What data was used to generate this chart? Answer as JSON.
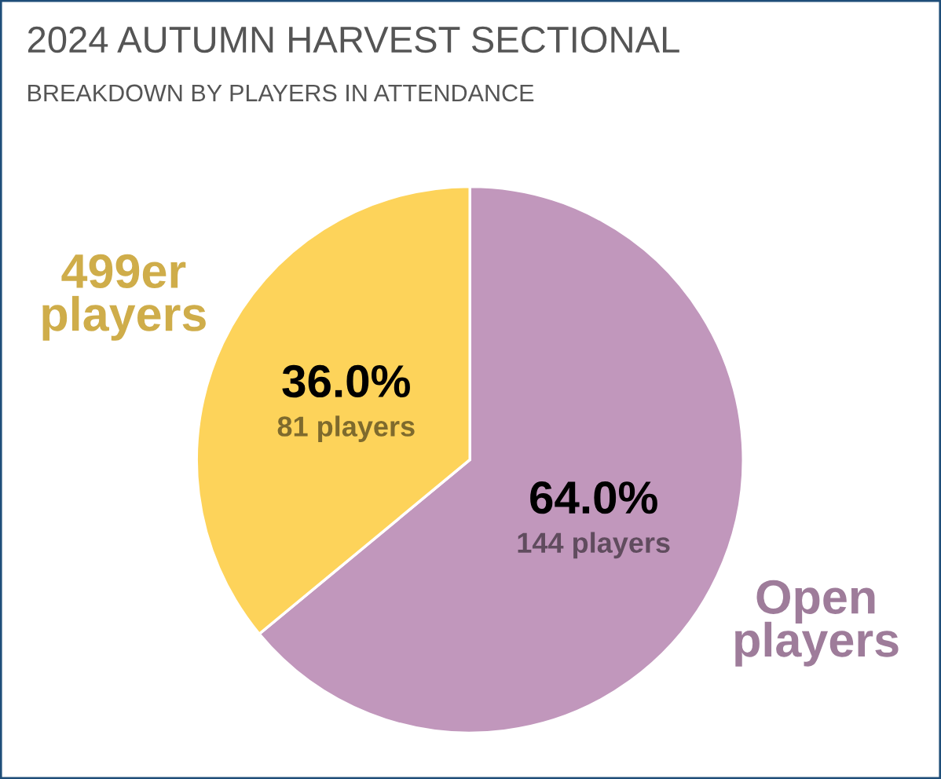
{
  "chart_data": {
    "type": "pie",
    "title": "2024 AUTUMN HARVEST SECTIONAL",
    "subtitle": "BREAKDOWN BY PLAYERS IN ATTENDANCE",
    "categories": [
      "Open players",
      "499er players"
    ],
    "values": [
      144,
      81
    ],
    "colors": [
      "#c197bc",
      "#fdd35a"
    ],
    "value_labels": [
      "64.0%\n144 players",
      "36.0%\n81 players"
    ],
    "legend": false
  }
}
